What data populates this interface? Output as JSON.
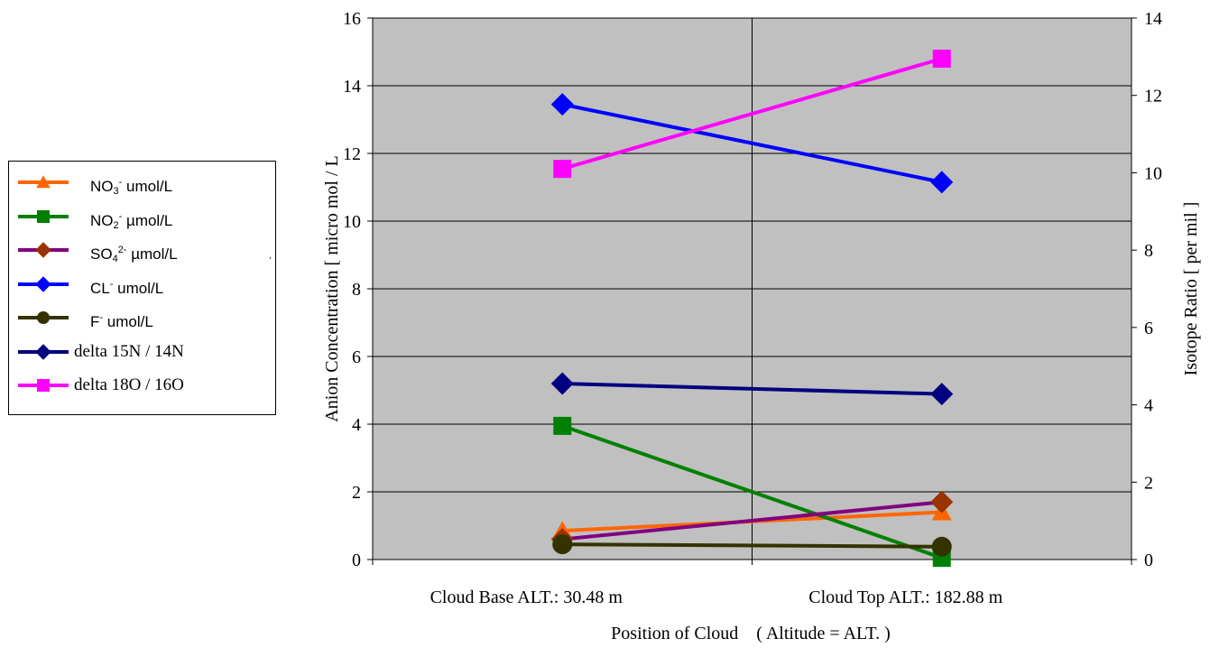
{
  "chart_data": {
    "type": "line",
    "categories": [
      "Cloud Base ALT.: 30.48 m",
      "Cloud Top ALT.: 182.88 m"
    ],
    "xlabel": "Position of Cloud　( Altitude = ALT. )",
    "ylabel": "Anion Concentration [ micro mol / L",
    "y2label": "Isotope Ratio [ per mil ]",
    "ylim": [
      0,
      16
    ],
    "y2lim": [
      0,
      14
    ],
    "yticks": [
      "0",
      "2",
      "4",
      "6",
      "8",
      "10",
      "12",
      "14",
      "16"
    ],
    "y2ticks": [
      "0",
      "2",
      "4",
      "6",
      "8",
      "10",
      "12",
      "14"
    ],
    "grid": true,
    "legend_position": "left",
    "series": [
      {
        "name": "NO3- umol/L",
        "axis": "left",
        "values": [
          0.85,
          1.4
        ],
        "color": "#ff6600",
        "marker": "triangle",
        "label_parts": [
          {
            "t": "NO"
          },
          {
            "t": "3",
            "sub": true
          },
          {
            "t": "-",
            "sup": true
          },
          {
            "t": " umol/L"
          }
        ]
      },
      {
        "name": "NO2- µmol/L",
        "axis": "left",
        "values": [
          3.95,
          0.05
        ],
        "color": "#008000",
        "marker": "square",
        "label_parts": [
          {
            "t": "NO"
          },
          {
            "t": "2",
            "sub": true
          },
          {
            "t": "-",
            "sup": true
          },
          {
            "t": " µmol/L"
          }
        ]
      },
      {
        "name": "SO42- µmol/L",
        "axis": "left",
        "values": [
          0.6,
          1.7
        ],
        "color": "#800080",
        "marker": "diamond",
        "marker_color": "#993300",
        "label_parts": [
          {
            "t": "SO"
          },
          {
            "t": "4",
            "sub": true
          },
          {
            "t": "2-",
            "sup": true
          },
          {
            "t": " µmol/L"
          }
        ]
      },
      {
        "name": "CL- umol/L",
        "axis": "left",
        "values": [
          13.45,
          11.15
        ],
        "color": "#0000ff",
        "marker": "diamond",
        "label_parts": [
          {
            "t": "CL"
          },
          {
            "t": "-",
            "sup": true
          },
          {
            "t": " umol/L"
          }
        ]
      },
      {
        "name": "F- umol/L",
        "axis": "left",
        "values": [
          0.45,
          0.38
        ],
        "color": "#333300",
        "marker": "circle",
        "label_parts": [
          {
            "t": "F"
          },
          {
            "t": "-",
            "sup": true
          },
          {
            "t": " umol/L"
          }
        ]
      },
      {
        "name": "delta 15N / 14N",
        "axis": "right",
        "values": [
          4.55,
          4.28
        ],
        "color": "#000080",
        "marker": "diamond",
        "label_parts": [
          {
            "t": "delta 15N / 14N"
          }
        ]
      },
      {
        "name": "delta 18O / 16O",
        "axis": "right",
        "values": [
          10.1,
          12.95
        ],
        "color": "#ff00ff",
        "marker": "square",
        "label_parts": [
          {
            "t": "delta 18O / 16O"
          }
        ]
      }
    ],
    "stray_mark": ","
  }
}
